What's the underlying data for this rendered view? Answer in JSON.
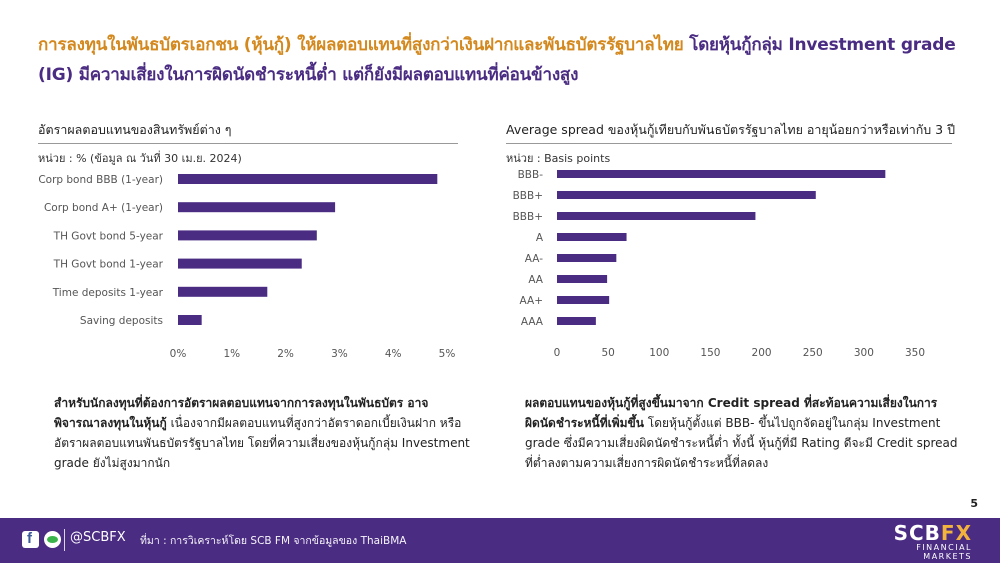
{
  "headline": {
    "part1": "การลงทุนในพันธบัตรเอกชน (หุ้นกู้) ให้ผลตอบแทนที่สูงกว่าเงินฝากและพันธบัตรรัฐบาลไทย",
    "part2": "โดยหุ้นกู้กลุ่ม Investment grade (IG) มีความเสี่ยงในการผิดนัดชำระหนี้ต่ำ แต่ก็ยังมีผลตอบแทนที่ค่อนข้างสูง"
  },
  "colors": {
    "bar": "#4b2c83",
    "accent": "#d4891f",
    "footer": "#4b2c83"
  },
  "left_panel": {
    "title": "อัตราผลตอบแทนของสินทรัพย์ต่าง ๆ",
    "unit": "หน่วย : % (ข้อมูล ณ วันที่ 30 เม.ย. 2024)"
  },
  "right_panel": {
    "title": "Average spread ของหุ้นกู้เทียบกับพันธบัตรรัฐบาลไทย อายุน้อยกว่าหรือเท่ากับ 3 ปี",
    "unit": "หน่วย : Basis points"
  },
  "chart_data": [
    {
      "type": "bar",
      "orientation": "horizontal",
      "categories": [
        "Corp bond BBB (1-year)",
        "Corp bond A+ (1-year)",
        "TH Govt bond 5-year",
        "TH Govt bond 1-year",
        "Time deposits 1-year",
        "Saving deposits"
      ],
      "values": [
        4.82,
        2.92,
        2.58,
        2.3,
        1.66,
        0.44
      ],
      "xlim": [
        0,
        5
      ],
      "xticks": [
        0,
        1,
        2,
        3,
        4,
        5
      ],
      "tick_suffix": "%",
      "grid": false
    },
    {
      "type": "bar",
      "orientation": "horizontal",
      "categories": [
        "BBB-",
        "BBB+",
        "BBB+",
        "A",
        "AA-",
        "AA",
        "AA+",
        "AAA"
      ],
      "values": [
        321,
        253,
        194,
        68,
        58,
        49,
        51,
        38
      ],
      "xlim": [
        0,
        350
      ],
      "xticks": [
        0,
        50,
        100,
        150,
        200,
        250,
        300,
        350
      ],
      "tick_suffix": "",
      "grid": false
    }
  ],
  "notes": {
    "left_bold": "สำหรับนักลงทุนที่ต้องการอัตราผลตอบแทนจากการลงทุนในพันธบัตร อาจพิจารณาลงทุนในหุ้นกู้",
    "left_text": " เนื่องจากมีผลตอบแทนที่สูงกว่าอัตราดอกเบี้ยเงินฝาก หรืออัตราผลตอบแทนพันธบัตรรัฐบาลไทย โดยที่ความเสี่ยงของหุ้นกู้กลุ่ม Investment grade ยังไม่สูงมากนัก",
    "right_bold": "ผลตอบแทนของหุ้นกู้ที่สูงขึ้นมาจาก Credit spread ที่สะท้อนความเสี่ยงในการผิดนัดชำระหนี้ที่เพิ่มขึ้น",
    "right_text": " โดยหุ้นกู้ตั้งแต่ BBB- ขึ้นไปถูกจัดอยู่ในกลุ่ม Investment grade ซึ่งมีความเสี่ยงผิดนัดชำระหนี้ต่ำ ทั้งนี้ หุ้นกู้ที่มี Rating ดีจะมี Credit spread ที่ต่ำลงตามความเสี่ยงการผิดนัดชำระหนี้ที่ลดลง"
  },
  "page_number": "5",
  "footer": {
    "handle": "@SCBFX",
    "source": "ที่มา : การวิเคราะห์โดย SCB FM จากข้อมูลของ ThaiBMA",
    "logo_scb": "SCB",
    "logo_fx": "FX",
    "logo_sub1": "FINANCIAL",
    "logo_sub2": "MARKETS"
  }
}
